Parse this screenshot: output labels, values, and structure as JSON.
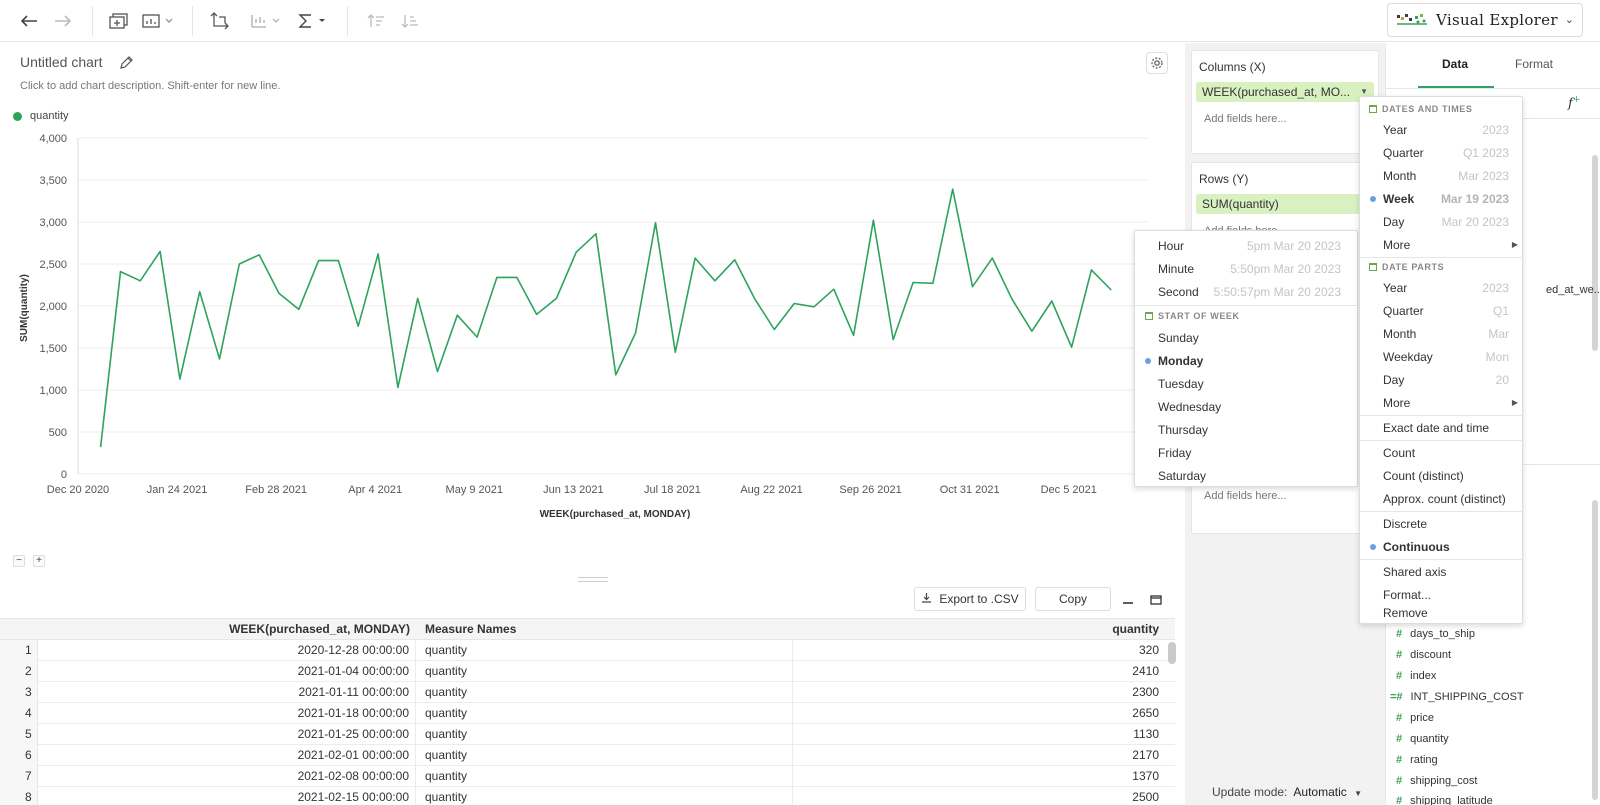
{
  "toolbar": {
    "icons": [
      "arrow-left-icon",
      "arrow-right-icon",
      "add-chart-icon",
      "remove-chart-icon",
      "swap-axes-icon",
      "sort-icon",
      "sigma-icon",
      "sort-asc-icon",
      "sort-desc-icon"
    ],
    "app_title": "Visual Explorer"
  },
  "chart": {
    "title": "Untitled chart",
    "description": "Click to add chart description. Shift-enter for new line.",
    "legend_label": "quantity",
    "series_color": "#2ea35c"
  },
  "chart_data": {
    "type": "line",
    "xlabel": "WEEK(purchased_at, MONDAY)",
    "ylabel": "SUM(quantity)",
    "ylim": [
      0,
      4000
    ],
    "y_ticks": [
      "0",
      "500",
      "1,000",
      "1,500",
      "2,000",
      "2,500",
      "3,000",
      "3,500",
      "4,000"
    ],
    "x_ticks": [
      "Dec 20 2020",
      "Jan 24 2021",
      "Feb 28 2021",
      "Apr 4 2021",
      "May 9 2021",
      "Jun 13 2021",
      "Jul 18 2021",
      "Aug 22 2021",
      "Sep 26 2021",
      "Oct 31 2021",
      "Dec 5 2021"
    ],
    "x_start": "2020-12-28",
    "series": [
      {
        "name": "quantity",
        "values": [
          320,
          2410,
          2300,
          2650,
          1130,
          2170,
          1370,
          2500,
          2610,
          2150,
          1960,
          2540,
          2540,
          1760,
          2620,
          1030,
          2090,
          1220,
          1890,
          1630,
          2340,
          2340,
          1900,
          2090,
          2640,
          2860,
          1180,
          1680,
          2990,
          1450,
          2570,
          2300,
          2550,
          2090,
          1720,
          2030,
          1990,
          2200,
          1650,
          3020,
          1600,
          2280,
          2270,
          3390,
          2230,
          2570,
          2080,
          1700,
          2060,
          1510,
          2430,
          2190
        ]
      }
    ]
  },
  "shelves": {
    "columns_title": "Columns (X)",
    "columns_pill": "WEEK(purchased_at, MO...",
    "rows_title": "Rows (Y)",
    "rows_pill": "SUM(quantity)",
    "add_fields": "Add fields here...",
    "update_mode_label": "Update mode:",
    "update_mode_value": "Automatic"
  },
  "table_actions": {
    "export": "Export to .CSV",
    "copy": "Copy"
  },
  "table": {
    "headers": [
      "WEEK(purchased_at, MONDAY)",
      "Measure Names",
      "quantity"
    ],
    "rows": [
      [
        "1",
        "2020-12-28 00:00:00",
        "quantity",
        "320"
      ],
      [
        "2",
        "2021-01-04 00:00:00",
        "quantity",
        "2410"
      ],
      [
        "3",
        "2021-01-11 00:00:00",
        "quantity",
        "2300"
      ],
      [
        "4",
        "2021-01-18 00:00:00",
        "quantity",
        "2650"
      ],
      [
        "5",
        "2021-01-25 00:00:00",
        "quantity",
        "1130"
      ],
      [
        "6",
        "2021-02-01 00:00:00",
        "quantity",
        "2170"
      ],
      [
        "7",
        "2021-02-08 00:00:00",
        "quantity",
        "1370"
      ],
      [
        "8",
        "2021-02-15 00:00:00",
        "quantity",
        "2500"
      ]
    ]
  },
  "right_panel": {
    "tab_data": "Data",
    "tab_format": "Format",
    "truncated_field": "ed_at_we...",
    "fields": [
      "days_to_ship",
      "discount",
      "index",
      "INT_SHIPPING_COST",
      "price",
      "quantity",
      "rating",
      "shipping_cost",
      "shipping_latitude"
    ]
  },
  "submenu": {
    "items": [
      {
        "label": "Hour",
        "hint": "5pm Mar 20 2023"
      },
      {
        "label": "Minute",
        "hint": "5:50pm Mar 20 2023"
      },
      {
        "label": "Second",
        "hint": "5:50:57pm Mar 20 2023"
      }
    ],
    "section": "START OF WEEK",
    "weekdays": [
      "Sunday",
      "Monday",
      "Tuesday",
      "Wednesday",
      "Thursday",
      "Friday",
      "Saturday"
    ],
    "selected_weekday": "Monday"
  },
  "menu": {
    "dates_section": "DATES AND TIMES",
    "dates": [
      {
        "label": "Year",
        "hint": "2023"
      },
      {
        "label": "Quarter",
        "hint": "Q1 2023"
      },
      {
        "label": "Month",
        "hint": "Mar 2023"
      },
      {
        "label": "Week",
        "hint": "Mar 19 2023"
      },
      {
        "label": "Day",
        "hint": "Mar 20 2023"
      },
      {
        "label": "More",
        "hint": ""
      }
    ],
    "parts_section": "DATE PARTS",
    "parts": [
      {
        "label": "Year",
        "hint": "2023"
      },
      {
        "label": "Quarter",
        "hint": "Q1"
      },
      {
        "label": "Month",
        "hint": "Mar"
      },
      {
        "label": "Weekday",
        "hint": "Mon"
      },
      {
        "label": "Day",
        "hint": "20"
      },
      {
        "label": "More",
        "hint": ""
      }
    ],
    "exact": "Exact date and time",
    "count": "Count",
    "count_distinct": "Count (distinct)",
    "approx_count": "Approx. count (distinct)",
    "discrete": "Discrete",
    "continuous": "Continuous",
    "shared_axis": "Shared axis",
    "format": "Format...",
    "remove": "Remove"
  }
}
